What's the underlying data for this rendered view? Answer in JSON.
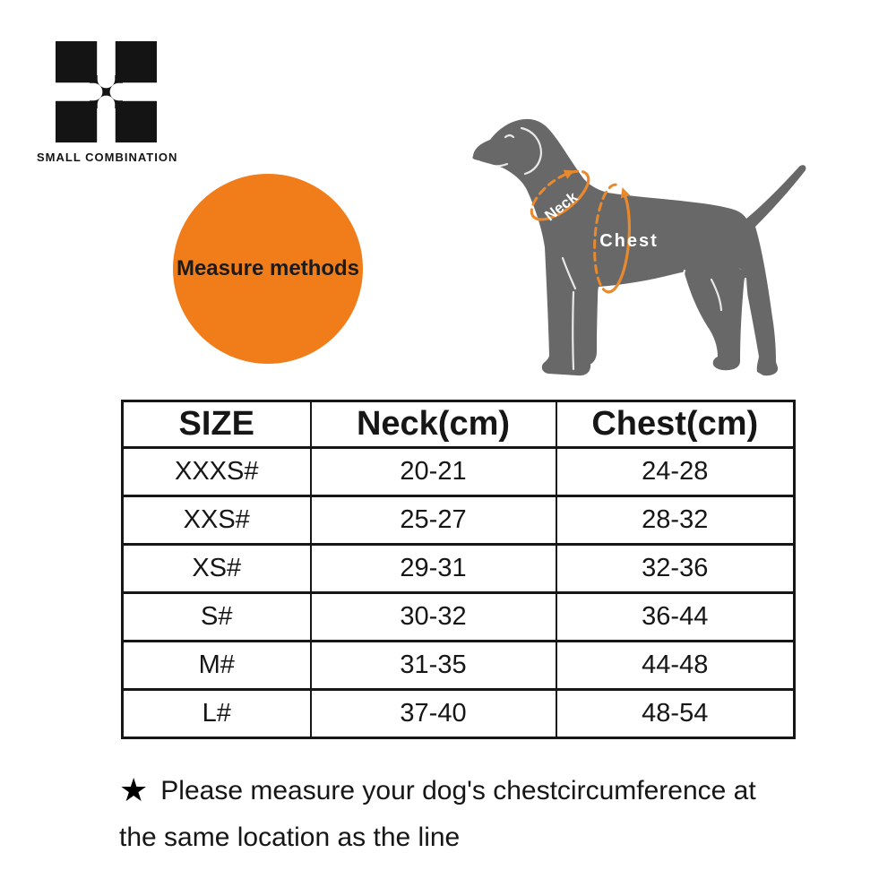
{
  "brand": {
    "name": "SMALL COMBINATION"
  },
  "measure_badge": {
    "label": "Measure methods"
  },
  "diagram": {
    "neck_label": "Neck",
    "chest_label": "Chest"
  },
  "size_table": {
    "headers": [
      "SIZE",
      "Neck(cm)",
      "Chest(cm)"
    ],
    "rows": [
      [
        "XXXS#",
        "20-21",
        "24-28"
      ],
      [
        "XXS#",
        "25-27",
        "28-32"
      ],
      [
        "XS#",
        "29-31",
        "32-36"
      ],
      [
        "S#",
        "30-32",
        "36-44"
      ],
      [
        "M#",
        "31-35",
        "44-48"
      ],
      [
        "L#",
        "37-40",
        "48-54"
      ]
    ]
  },
  "note": {
    "star": "★",
    "text_line1": "Please measure your dog's chestcircumference at",
    "text_line2": "the same location as the line"
  },
  "colors": {
    "badge_orange": "#F07D1A",
    "annotation_orange": "#E9892D",
    "dog_gray": "#686868",
    "ink": "#161616",
    "logo_black": "#141414"
  }
}
